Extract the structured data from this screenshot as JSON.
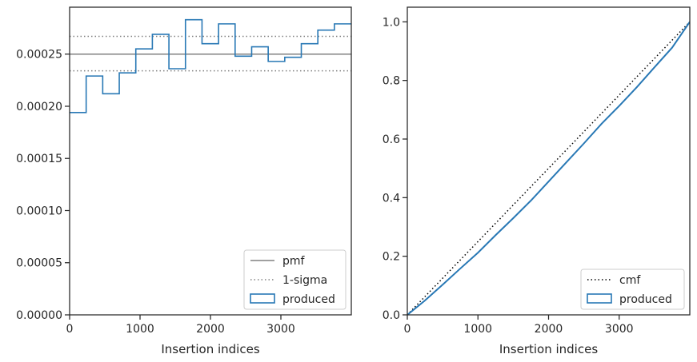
{
  "chart_data": [
    {
      "type": "step",
      "xlabel": "Insertion indices",
      "ylabel": "",
      "xlim": [
        0,
        4000
      ],
      "ylim": [
        0,
        0.000295
      ],
      "xticks": [
        0,
        1000,
        2000,
        3000
      ],
      "xtick_labels": [
        "0",
        "1000",
        "2000",
        "3000"
      ],
      "yticks": [
        0,
        5e-05,
        0.0001,
        0.00015,
        0.0002,
        0.00025
      ],
      "ytick_labels": [
        "0.00000",
        "0.00005",
        "0.00010",
        "0.00015",
        "0.00020",
        "0.00025"
      ],
      "legend_position": "lower right",
      "legend": [
        "pmf",
        "1-sigma",
        "produced"
      ],
      "pmf": 0.00025,
      "sigma_band": [
        0.000234,
        0.000267
      ],
      "series": [
        {
          "name": "produced",
          "color": "#2878b5",
          "bin_edges": [
            0,
            235,
            470,
            705,
            940,
            1175,
            1410,
            1645,
            1880,
            2115,
            2350,
            2585,
            2820,
            3055,
            3290,
            3525,
            3760,
            4000
          ],
          "values": [
            0.000194,
            0.000229,
            0.000212,
            0.000232,
            0.000255,
            0.000269,
            0.000236,
            0.000283,
            0.00026,
            0.000279,
            0.000248,
            0.000257,
            0.000243,
            0.000247,
            0.00026,
            0.000273,
            0.000279
          ]
        }
      ]
    },
    {
      "type": "line",
      "xlabel": "Insertion indices",
      "ylabel": "",
      "xlim": [
        0,
        4000
      ],
      "ylim": [
        0,
        1.05
      ],
      "xticks": [
        0,
        1000,
        2000,
        3000
      ],
      "xtick_labels": [
        "0",
        "1000",
        "2000",
        "3000"
      ],
      "yticks": [
        0,
        0.2,
        0.4,
        0.6,
        0.8,
        1.0
      ],
      "ytick_labels": [
        "0.0",
        "0.2",
        "0.4",
        "0.6",
        "0.8",
        "1.0"
      ],
      "legend_position": "lower right",
      "legend": [
        "cmf",
        "produced"
      ],
      "series": [
        {
          "name": "cmf",
          "color": "#000000",
          "x": [
            0,
            4000
          ],
          "y": [
            0,
            1.0
          ]
        },
        {
          "name": "produced",
          "color": "#2878b5",
          "x": [
            0,
            250,
            500,
            750,
            1000,
            1250,
            1500,
            1750,
            2000,
            2250,
            2500,
            2750,
            3000,
            3250,
            3500,
            3750,
            4000
          ],
          "y": [
            0,
            0.049,
            0.103,
            0.158,
            0.212,
            0.272,
            0.33,
            0.39,
            0.455,
            0.52,
            0.585,
            0.652,
            0.713,
            0.777,
            0.845,
            0.912,
            1.0
          ]
        }
      ]
    }
  ]
}
